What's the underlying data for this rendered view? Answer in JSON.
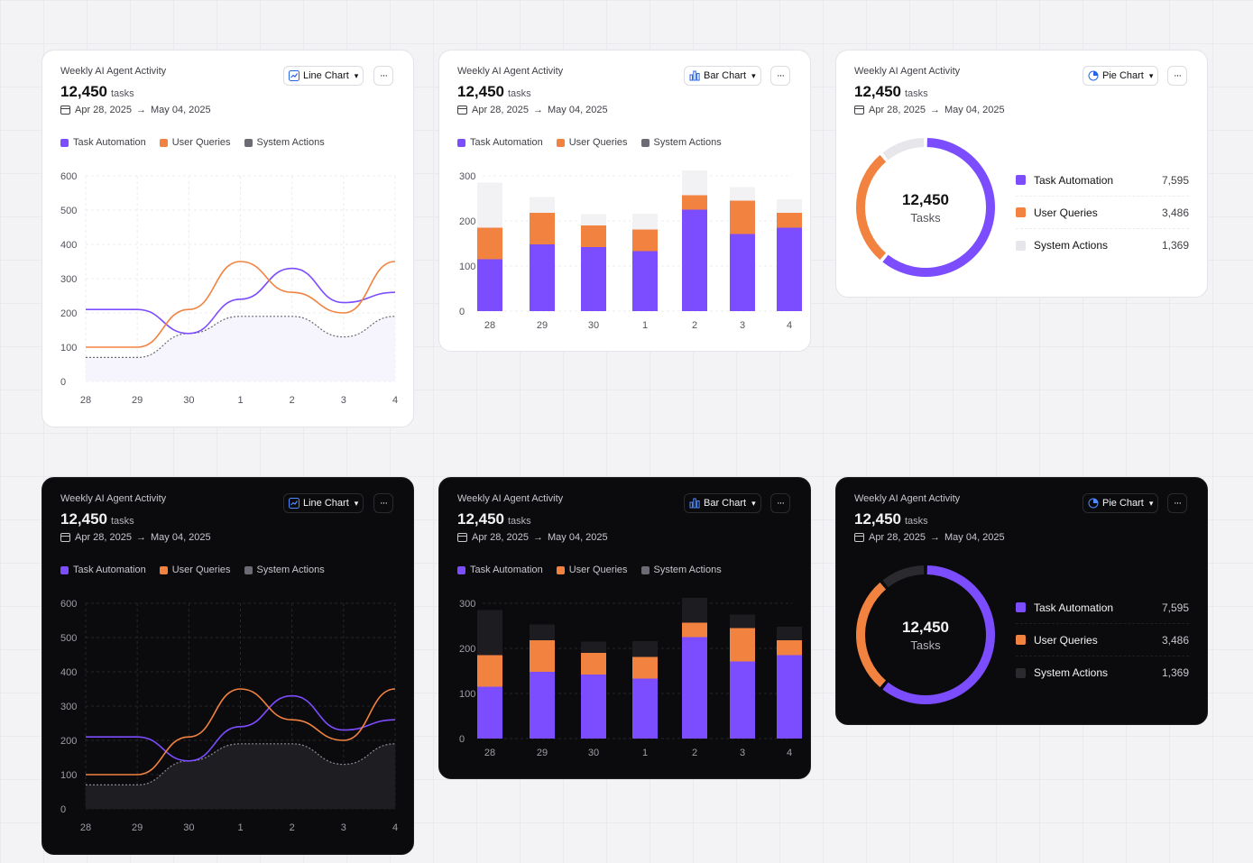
{
  "colors": {
    "task": "#7c4dff",
    "user": "#f28240",
    "system_light": "#e6e6eb",
    "system_dark": "#2a2a2f",
    "system_legend": "#6b6b74"
  },
  "labels": {
    "title": "Weekly AI Agent Activity",
    "total": "12,450",
    "unit": "tasks",
    "start_date": "Apr 28, 2025",
    "arrow": "→",
    "end_date": "May 04, 2025",
    "line_button": "Line Chart",
    "bar_button": "Bar Chart",
    "pie_button": "Pie Chart",
    "more": "···",
    "chevron": "⌄",
    "legend_task": "Task Automation",
    "legend_user": "User Queries",
    "legend_system": "System Actions",
    "pie_center_number": "12,450",
    "pie_center_label": "Tasks",
    "task_value": "7,595",
    "user_value": "3,486",
    "system_value": "1,369"
  },
  "chart_data": [
    {
      "type": "line",
      "categories": [
        "28",
        "29",
        "30",
        "1",
        "2",
        "3",
        "4"
      ],
      "ylim": [
        0,
        600
      ],
      "yticks": [
        0,
        100,
        200,
        300,
        400,
        500,
        600
      ],
      "series": [
        {
          "name": "Task Automation",
          "values": [
            210,
            210,
            140,
            240,
            330,
            230,
            260
          ]
        },
        {
          "name": "User Queries",
          "values": [
            100,
            100,
            210,
            350,
            260,
            200,
            350
          ]
        },
        {
          "name": "System Actions",
          "values": [
            70,
            70,
            140,
            190,
            190,
            130,
            190
          ]
        }
      ]
    },
    {
      "type": "bar",
      "stacked": true,
      "categories": [
        "28",
        "29",
        "30",
        "1",
        "2",
        "3",
        "4"
      ],
      "ylim": [
        0,
        300
      ],
      "yticks": [
        0,
        100,
        200,
        300
      ],
      "series": [
        {
          "name": "Task Automation",
          "values": [
            115,
            148,
            142,
            133,
            225,
            171,
            185
          ]
        },
        {
          "name": "User Queries",
          "values": [
            70,
            70,
            48,
            48,
            32,
            74,
            33
          ]
        },
        {
          "name": "System Actions",
          "values": [
            100,
            35,
            25,
            35,
            55,
            30,
            30
          ]
        }
      ]
    },
    {
      "type": "pie",
      "categories": [
        "Task Automation",
        "User Queries",
        "System Actions"
      ],
      "values": [
        7595,
        3486,
        1369
      ]
    }
  ]
}
